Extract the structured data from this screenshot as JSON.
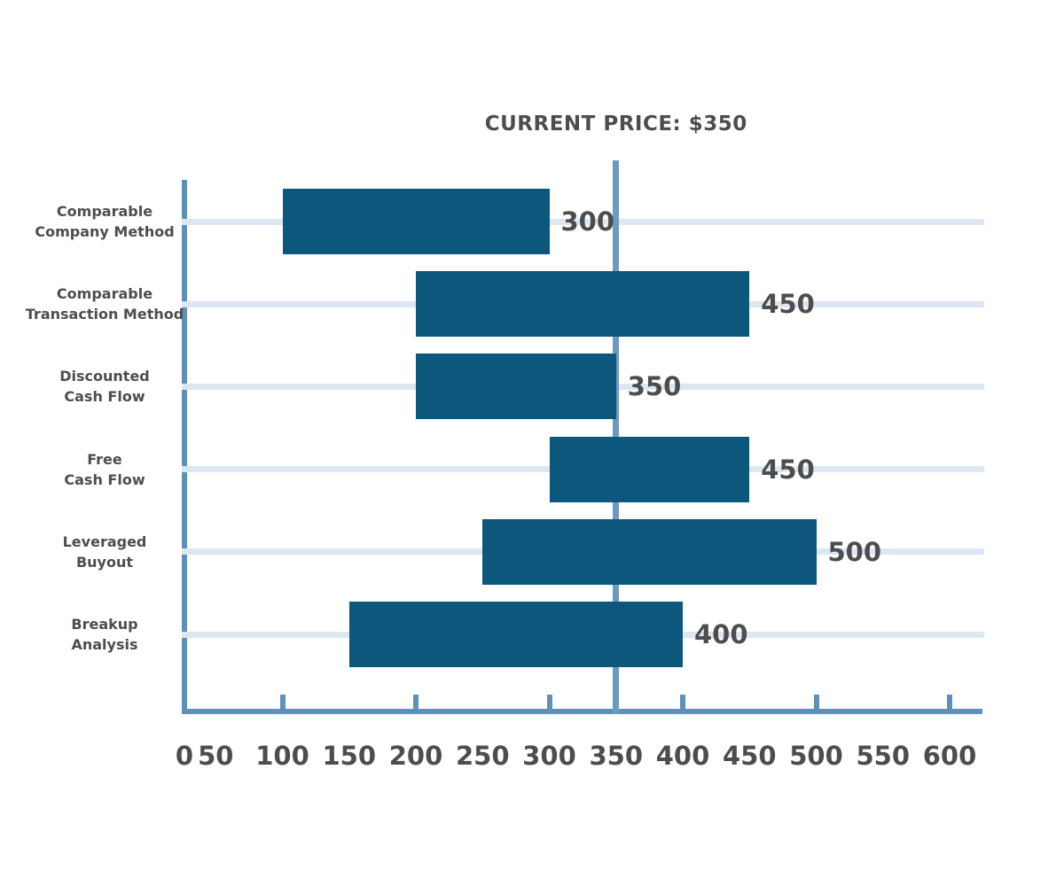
{
  "chart_data": {
    "type": "bar",
    "orientation": "horizontal-range",
    "description": "Football-field valuation chart: price ranges by valuation method",
    "title": "CURRENT PRICE: $350",
    "current_price": 350,
    "bars": [
      {
        "label_lines": [
          "Comparable",
          "Company Method"
        ],
        "low": 100,
        "high": 300
      },
      {
        "label_lines": [
          "Comparable",
          "Transaction Method"
        ],
        "low": 200,
        "high": 450
      },
      {
        "label_lines": [
          "Discounted",
          "Cash Flow"
        ],
        "low": 200,
        "high": 350
      },
      {
        "label_lines": [
          "Free",
          "Cash Flow"
        ],
        "low": 300,
        "high": 450
      },
      {
        "label_lines": [
          "Leveraged",
          "Buyout"
        ],
        "low": 250,
        "high": 500
      },
      {
        "label_lines": [
          "Breakup",
          "Analysis"
        ],
        "low": 150,
        "high": 400
      }
    ],
    "x_axis": {
      "xlim": [
        0,
        600
      ],
      "tick_labels": [
        0,
        50,
        100,
        150,
        200,
        250,
        300,
        350,
        400,
        450,
        500,
        550,
        600
      ],
      "tick_marks": [
        100,
        200,
        300,
        400,
        500,
        600
      ]
    },
    "grid": "one light horizontal gridline per category row",
    "legend": "none",
    "colors": {
      "bar": "#0D567C",
      "axis": "#5F91B8",
      "price_line": "#6C9BC2",
      "gridline": "#DCE7F1",
      "text": "#4D4D4D",
      "background": "#FFFFFF"
    }
  }
}
